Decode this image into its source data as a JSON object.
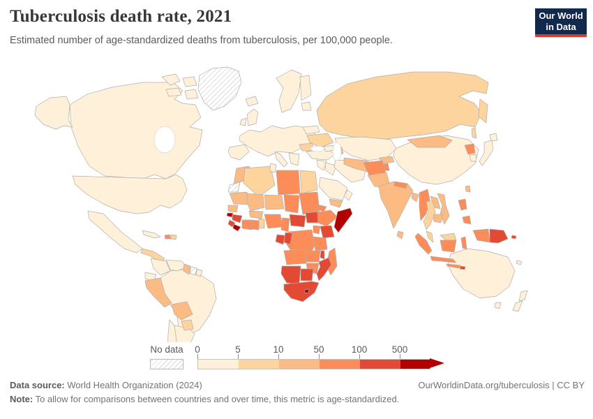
{
  "header": {
    "title": "Tuberculosis death rate, 2021",
    "subtitle": "Estimated number of age-standardized deaths from tuberculosis, per 100,000 people."
  },
  "logo": {
    "line1": "Our World",
    "line2": "in Data",
    "bg_color": "#10294c",
    "accent_color": "#d93a2e"
  },
  "legend": {
    "no_data_label": "No data",
    "tick_labels": [
      "0",
      "5",
      "10",
      "50",
      "100",
      "500"
    ]
  },
  "footer": {
    "data_source_label": "Data source:",
    "data_source": " World Health Organization (2024)",
    "note_label": "Note:",
    "note": " To allow for comparisons between countries and over time, this metric is age-standardized.",
    "link": "OurWorldinData.org/tuberculosis | CC BY"
  },
  "chart_data": {
    "type": "heatmap",
    "subtype": "choropleth-world-map",
    "title": "Tuberculosis death rate, 2021",
    "unit": "age-standardized deaths per 100,000 people",
    "year": 2021,
    "legend_position": "bottom",
    "no_data_color": "hatched",
    "bins": [
      {
        "range": "0-5",
        "min": 0,
        "max": 5,
        "color": "#fef0d9"
      },
      {
        "range": "5-10",
        "min": 5,
        "max": 10,
        "color": "#fdd49e"
      },
      {
        "range": "10-50",
        "min": 10,
        "max": 50,
        "color": "#fdbb84"
      },
      {
        "range": "50-100",
        "min": 50,
        "max": 100,
        "color": "#fc8d59"
      },
      {
        "range": "100-500",
        "min": 100,
        "max": 500,
        "color": "#e34a33"
      },
      {
        "range": "500+",
        "min": 500,
        "max": null,
        "color": "#b30000"
      }
    ],
    "countries": {
      "usa": "0-5",
      "canada": "0-5",
      "greenland": "no-data",
      "mexico": "0-5",
      "central-america": "5-10",
      "cuba": "0-5",
      "haiti": "50-100",
      "dominican-republic": "5-10",
      "colombia": "0-5",
      "venezuela": "0-5",
      "guyana": "10-50",
      "suriname": "no-data",
      "french-guiana": "0-5",
      "ecuador": "0-5",
      "peru": "10-50",
      "brazil": "0-5",
      "bolivia": "10-50",
      "paraguay": "5-10",
      "chile": "0-5",
      "argentina": "0-5",
      "iceland": "0-5",
      "uk": "0-5",
      "ireland": "0-5",
      "scandinavia": "0-5",
      "finland": "0-5",
      "baltics": "0-5",
      "europe-main": "0-5",
      "iberia": "0-5",
      "italy": "0-5",
      "balkans": "0-5",
      "belarus": "0-5",
      "ukraine": "5-10",
      "romania": "5-10",
      "russia": "5-10",
      "kazakhstan": "0-5",
      "uzbekistan-turkmenistan": "10-50",
      "kyrgyzstan": "10-50",
      "tajikistan": "50-100",
      "georgia": "0-5",
      "azerbaijan": "10-50",
      "turkey": "0-5",
      "syria-levant": "0-5",
      "iraq": "0-5",
      "iran": "0-5",
      "saudi-arabia": "0-5",
      "yemen": "10-50",
      "oman": "0-5",
      "afghanistan": "50-100",
      "pakistan": "10-50",
      "india": "10-50",
      "nepal": "50-100",
      "bangladesh": "10-50",
      "sri-lanka": "10-50",
      "china": "0-5",
      "mongolia": "10-50",
      "north-korea": "50-100",
      "south-korea": "0-5",
      "japan": "0-5",
      "taiwan": "10-50",
      "myanmar": "50-100",
      "thailand": "5-10",
      "laos": "10-50",
      "vietnam": "10-50",
      "cambodia": "10-50",
      "malaysia": "5-10",
      "indonesia": "50-100",
      "philippines": "50-100",
      "papua-new-guinea": "100-500",
      "timor-leste": "100-500",
      "solomon-islands": "100-500",
      "new-caledonia": "0-5",
      "australia": "0-5",
      "new-zealand": "0-5",
      "morocco": "10-50",
      "western-sahara": "no-data",
      "algeria": "5-10",
      "tunisia": "0-5",
      "libya": "50-100",
      "egypt": "5-10",
      "mauritania": "10-50",
      "mali": "10-50",
      "niger": "10-50",
      "chad": "50-100",
      "sudan": "50-100",
      "eritrea": "50-100",
      "senegal": "10-50",
      "guinea-bissau": "500+",
      "guinea": "100-500",
      "sierra-leone": "100-500",
      "liberia": "500+",
      "burkina-faso": "10-50",
      "cote-divoire": "50-100",
      "ghana": "50-100",
      "togo-benin": "5-10",
      "nigeria": "50-100",
      "cameroon": "50-100",
      "central-african-republic": "100-500",
      "south-sudan": "100-500",
      "ethiopia": "50-100",
      "somalia": "500+",
      "uganda": "50-100",
      "kenya": "100-500",
      "drc": "50-100",
      "gabon": "100-500",
      "congo": "100-500",
      "tanzania": "50-100",
      "angola": "50-100",
      "zambia": "50-100",
      "malawi": "100-500",
      "madagascar": "50-100",
      "mozambique": "100-500",
      "zimbabwe": "50-100",
      "namibia": "100-500",
      "botswana": "100-500",
      "south-africa": "100-500",
      "lesotho": "500+"
    }
  }
}
